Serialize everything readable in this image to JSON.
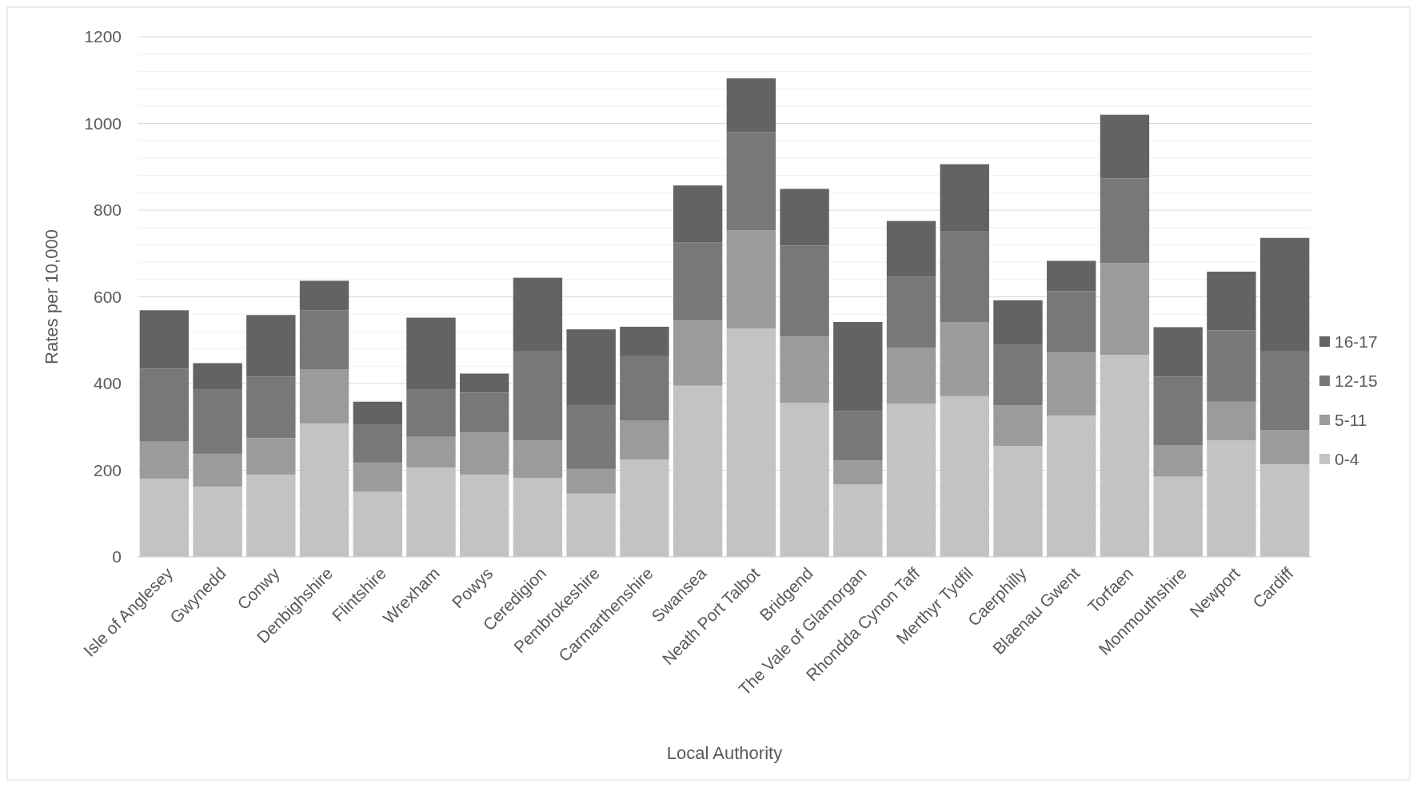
{
  "chart_data": {
    "type": "bar",
    "stacked": true,
    "xlabel": "Local Authority",
    "ylabel": "Rates per 10,000",
    "categories": [
      "Isle of Anglesey",
      "Gwynedd",
      "Conwy",
      "Denbighshire",
      "Flintshire",
      "Wrexham",
      "Powys",
      "Ceredigion",
      "Pembrokeshire",
      "Carmarthenshire",
      "Swansea",
      "Neath Port Talbot",
      "Bridgend",
      "The Vale of Glamorgan",
      "Rhondda Cynon Taff",
      "Merthyr Tydfil",
      "Caerphilly",
      "Blaenau Gwent",
      "Torfaen",
      "Monmouthshire",
      "Newport",
      "Cardiff"
    ],
    "series": [
      {
        "name": "0-4",
        "color": "#c3c3c3",
        "values": [
          180,
          162,
          190,
          308,
          150,
          206,
          190,
          182,
          146,
          225,
          395,
          527,
          355,
          167,
          353,
          371,
          256,
          326,
          466,
          185,
          269,
          214
        ]
      },
      {
        "name": "5-11",
        "color": "#9b9b9b",
        "values": [
          86,
          76,
          84,
          124,
          67,
          71,
          97,
          87,
          57,
          89,
          150,
          226,
          153,
          55,
          129,
          171,
          94,
          145,
          212,
          73,
          89,
          78
        ]
      },
      {
        "name": "12-15",
        "color": "#787878",
        "values": [
          168,
          149,
          142,
          137,
          89,
          110,
          92,
          205,
          147,
          149,
          181,
          227,
          210,
          115,
          164,
          210,
          139,
          142,
          195,
          158,
          165,
          182
        ]
      },
      {
        "name": "16-17",
        "color": "#636363",
        "values": [
          135,
          60,
          142,
          68,
          52,
          165,
          44,
          170,
          175,
          68,
          131,
          124,
          131,
          205,
          129,
          154,
          103,
          70,
          147,
          114,
          135,
          262
        ]
      }
    ],
    "ylim": [
      0,
      1200
    ],
    "yticks": [
      0,
      {
        "value": 40,
        "label": null
      },
      {
        "value": 80,
        "label": null
      },
      {
        "value": 120,
        "label": null
      },
      {
        "value": 160,
        "label": null
      },
      200,
      {
        "value": 240,
        "label": null
      },
      {
        "value": 280,
        "label": null
      },
      {
        "value": 320,
        "label": null
      },
      {
        "value": 360,
        "label": null
      },
      400,
      {
        "value": 440,
        "label": null
      },
      {
        "value": 480,
        "label": null
      },
      {
        "value": 520,
        "label": null
      },
      {
        "value": 560,
        "label": null
      },
      600,
      {
        "value": 640,
        "label": null
      },
      {
        "value": 680,
        "label": null
      },
      {
        "value": 720,
        "label": null
      },
      {
        "value": 760,
        "label": null
      },
      800,
      {
        "value": 840,
        "label": null
      },
      {
        "value": 880,
        "label": null
      },
      {
        "value": 920,
        "label": null
      },
      {
        "value": 960,
        "label": null
      },
      1000,
      {
        "value": 1040,
        "label": null
      },
      {
        "value": 1080,
        "label": null
      },
      {
        "value": 1120,
        "label": null
      },
      {
        "value": 1160,
        "label": null
      },
      1200
    ],
    "grid": true,
    "legend": "right"
  }
}
